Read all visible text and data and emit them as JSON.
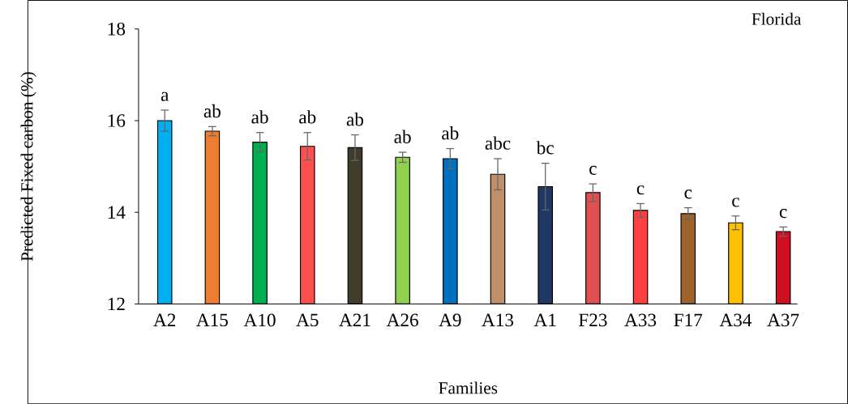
{
  "chart_data": {
    "type": "bar",
    "title": "Florida",
    "xlabel": "Families",
    "ylabel": "Predicted Fixed carbon (%)",
    "categories": [
      "A2",
      "A15",
      "A10",
      "A5",
      "A21",
      "A26",
      "A9",
      "A13",
      "A1",
      "F23",
      "A33",
      "F17",
      "A34",
      "A37"
    ],
    "values": [
      16.0,
      15.77,
      15.53,
      15.44,
      15.41,
      15.2,
      15.17,
      14.83,
      14.56,
      14.43,
      14.04,
      13.97,
      13.77,
      13.58
    ],
    "errors": [
      0.23,
      0.1,
      0.21,
      0.3,
      0.28,
      0.11,
      0.22,
      0.34,
      0.51,
      0.19,
      0.15,
      0.13,
      0.15,
      0.1
    ],
    "colors": [
      "#00b0f0",
      "#ed7d31",
      "#00b050",
      "#ff5050",
      "#403c2c",
      "#92d050",
      "#0070c0",
      "#c0906a",
      "#1f3864",
      "#e05050",
      "#ff4040",
      "#a0622d",
      "#ffc000",
      "#d01020"
    ],
    "ylim": [
      12,
      18
    ],
    "yticks": [
      12,
      14,
      16,
      18
    ],
    "annotations": [
      "a",
      "ab",
      "ab",
      "ab",
      "ab",
      "ab",
      "ab",
      "abc",
      "bc",
      "c",
      "c",
      "c",
      "c",
      "c"
    ]
  }
}
